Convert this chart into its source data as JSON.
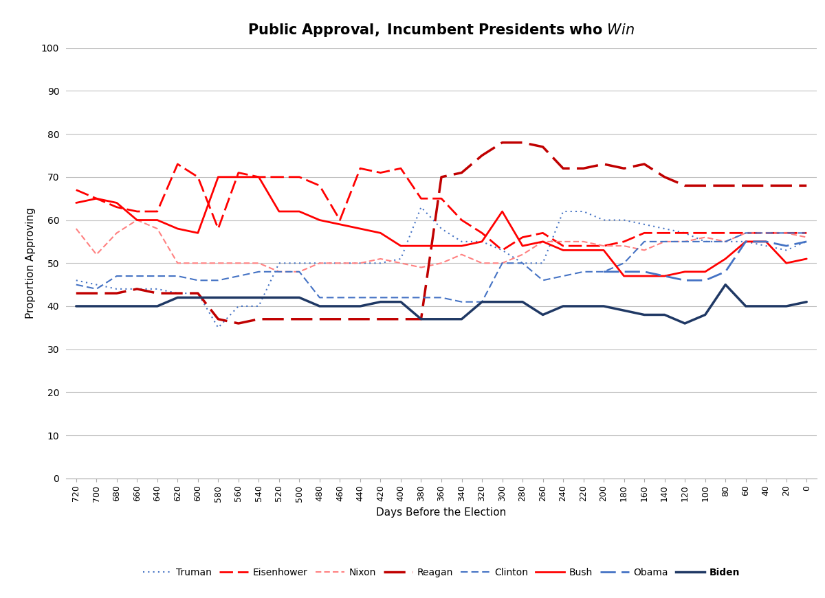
{
  "title_regular": "Public Approval, Incumbent Presidents who ",
  "title_italic": "Win",
  "xlabel": "Days Before the Election",
  "ylabel": "Proportion Approving",
  "x_ticks": [
    720,
    700,
    680,
    660,
    640,
    620,
    600,
    580,
    560,
    540,
    520,
    500,
    480,
    460,
    440,
    420,
    400,
    380,
    360,
    340,
    320,
    300,
    280,
    260,
    240,
    220,
    200,
    180,
    160,
    140,
    120,
    100,
    80,
    60,
    40,
    20,
    0
  ],
  "ylim": [
    0,
    100
  ],
  "yticks": [
    0,
    10,
    20,
    30,
    40,
    50,
    60,
    70,
    80,
    90,
    100
  ],
  "data": {
    "Truman": [
      46,
      45,
      44,
      44,
      44,
      43,
      43,
      35,
      40,
      40,
      50,
      50,
      50,
      50,
      50,
      50,
      51,
      63,
      58,
      55,
      55,
      53,
      50,
      50,
      62,
      62,
      60,
      60,
      59,
      58,
      57,
      55,
      55,
      55,
      54,
      53,
      55
    ],
    "Eisenhower": [
      67,
      65,
      63,
      62,
      62,
      73,
      70,
      58,
      71,
      70,
      70,
      70,
      68,
      60,
      72,
      71,
      72,
      65,
      65,
      60,
      57,
      53,
      56,
      57,
      54,
      54,
      54,
      55,
      57,
      57,
      57,
      57,
      57,
      57,
      57,
      57,
      57
    ],
    "Nixon": [
      58,
      52,
      57,
      60,
      58,
      50,
      50,
      50,
      50,
      50,
      48,
      48,
      50,
      50,
      50,
      51,
      50,
      49,
      50,
      52,
      50,
      50,
      52,
      55,
      55,
      55,
      54,
      54,
      53,
      55,
      55,
      56,
      55,
      57,
      57,
      57,
      56
    ],
    "Reagan": [
      43,
      43,
      43,
      44,
      43,
      43,
      43,
      37,
      36,
      37,
      37,
      37,
      37,
      37,
      37,
      37,
      37,
      37,
      70,
      71,
      75,
      78,
      78,
      77,
      72,
      72,
      73,
      72,
      73,
      70,
      68,
      68,
      68,
      68,
      68,
      68,
      68
    ],
    "Clinton": [
      45,
      44,
      47,
      47,
      47,
      47,
      46,
      46,
      47,
      48,
      48,
      48,
      42,
      42,
      42,
      42,
      42,
      42,
      42,
      41,
      41,
      50,
      50,
      46,
      47,
      48,
      48,
      50,
      55,
      55,
      55,
      55,
      55,
      57,
      57,
      57,
      57
    ],
    "Bush": [
      64,
      65,
      64,
      60,
      60,
      58,
      57,
      70,
      70,
      70,
      62,
      62,
      60,
      59,
      58,
      57,
      54,
      54,
      54,
      54,
      55,
      62,
      54,
      55,
      53,
      53,
      53,
      47,
      47,
      47,
      48,
      48,
      51,
      55,
      55,
      50,
      51
    ],
    "Obama": [
      null,
      null,
      null,
      null,
      null,
      null,
      null,
      null,
      null,
      null,
      null,
      null,
      null,
      null,
      null,
      null,
      null,
      null,
      null,
      null,
      null,
      null,
      null,
      null,
      null,
      null,
      48,
      48,
      48,
      47,
      46,
      46,
      48,
      55,
      55,
      54,
      55
    ],
    "Biden": [
      40,
      40,
      40,
      40,
      40,
      42,
      42,
      42,
      42,
      42,
      42,
      42,
      40,
      40,
      40,
      41,
      41,
      37,
      37,
      37,
      41,
      41,
      41,
      38,
      40,
      40,
      40,
      39,
      38,
      38,
      36,
      38,
      45,
      40,
      40,
      40,
      41
    ]
  },
  "styles": {
    "Truman": {
      "color": "#4472C4",
      "linewidth": 1.5,
      "ls_key": "dotted"
    },
    "Eisenhower": {
      "color": "#FF0000",
      "linewidth": 2.0,
      "ls_key": "longdash_red"
    },
    "Nixon": {
      "color": "#FF8080",
      "linewidth": 1.5,
      "ls_key": "shortdash"
    },
    "Reagan": {
      "color": "#C00000",
      "linewidth": 2.5,
      "ls_key": "longdash_dark"
    },
    "Clinton": {
      "color": "#4472C4",
      "linewidth": 1.5,
      "ls_key": "middash"
    },
    "Bush": {
      "color": "#FF0000",
      "linewidth": 2.0,
      "ls_key": "solid"
    },
    "Obama": {
      "color": "#4472C4",
      "linewidth": 2.0,
      "ls_key": "longdash_blue"
    },
    "Biden": {
      "color": "#1F3864",
      "linewidth": 2.5,
      "ls_key": "solid"
    }
  }
}
